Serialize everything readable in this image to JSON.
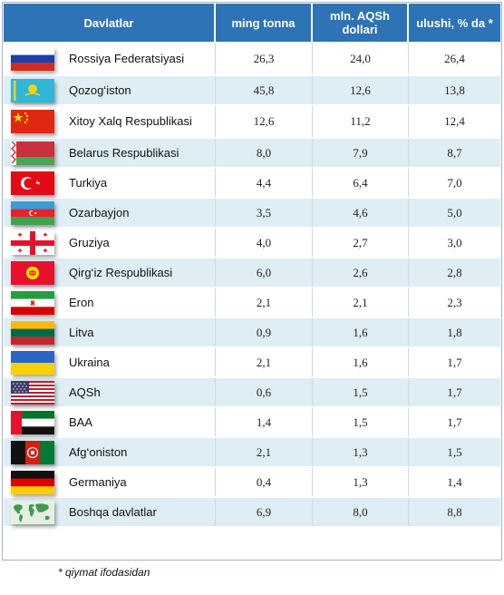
{
  "header": {
    "col_country": "Davlatlar",
    "col_tons": "ming tonna",
    "col_usd": "mln. AQSh dollari",
    "col_share": "ulushi, % da *"
  },
  "rows": [
    {
      "country": "Rossiya Federatsiyasi",
      "tons": "26,3",
      "usd": "24,0",
      "share": "26,4",
      "flag": "russia-flag-icon"
    },
    {
      "country": "Qozog‘iston",
      "tons": "45,8",
      "usd": "12,6",
      "share": "13,8",
      "flag": "kazakhstan-flag-icon"
    },
    {
      "country": "Xitoy Xalq Respublikasi",
      "tons": "12,6",
      "usd": "11,2",
      "share": "12,4",
      "flag": "china-flag-icon"
    },
    {
      "country": "Belarus Respublikasi",
      "tons": "8,0",
      "usd": "7,9",
      "share": "8,7",
      "flag": "belarus-flag-icon"
    },
    {
      "country": "Turkiya",
      "tons": "4,4",
      "usd": "6,4",
      "share": "7,0",
      "flag": "turkey-flag-icon"
    },
    {
      "country": "Ozarbayjon",
      "tons": "3,5",
      "usd": "4,6",
      "share": "5,0",
      "flag": "azerbaijan-flag-icon"
    },
    {
      "country": "Gruziya",
      "tons": "4,0",
      "usd": "2,7",
      "share": "3,0",
      "flag": "georgia-flag-icon"
    },
    {
      "country": "Qirg‘iz Respublikasi",
      "tons": "6,0",
      "usd": "2,6",
      "share": "2,8",
      "flag": "kyrgyzstan-flag-icon"
    },
    {
      "country": "Eron",
      "tons": "2,1",
      "usd": "2,1",
      "share": "2,3",
      "flag": "iran-flag-icon"
    },
    {
      "country": "Litva",
      "tons": "0,9",
      "usd": "1,6",
      "share": "1,8",
      "flag": "lithuania-flag-icon"
    },
    {
      "country": "Ukraina",
      "tons": "2,1",
      "usd": "1,6",
      "share": "1,7",
      "flag": "ukraine-flag-icon"
    },
    {
      "country": "AQSh",
      "tons": "0,6",
      "usd": "1,5",
      "share": "1,7",
      "flag": "usa-flag-icon"
    },
    {
      "country": "BAA",
      "tons": "1,4",
      "usd": "1,5",
      "share": "1,7",
      "flag": "uae-flag-icon"
    },
    {
      "country": "Afg‘oniston",
      "tons": "2,1",
      "usd": "1,3",
      "share": "1,5",
      "flag": "afghanistan-flag-icon"
    },
    {
      "country": "Germaniya",
      "tons": "0,4",
      "usd": "1,3",
      "share": "1,4",
      "flag": "germany-flag-icon"
    },
    {
      "country": "Boshqa davlatlar",
      "tons": "6,9",
      "usd": "8,0",
      "share": "8,8",
      "flag": "world-map-icon"
    }
  ],
  "footnote": "* qiymat ifodasidan",
  "colors": {
    "header_bg": "#2e73b5",
    "row_alt_bg": "#dfeef5"
  }
}
